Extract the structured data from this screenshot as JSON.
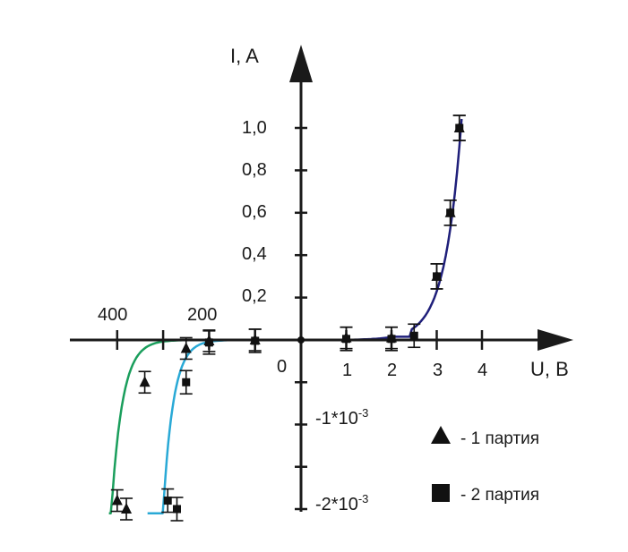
{
  "chart_data": {
    "type": "scatter",
    "description_axes": "current-voltage characteristic, forward and reverse branches with different scales",
    "x_axis": {
      "label": "U, B",
      "origin_label": "0",
      "positive_ticks": [
        "1",
        "2",
        "3",
        "4"
      ],
      "negative_tick_labels": [
        "400",
        "200"
      ]
    },
    "y_axis": {
      "label": "I, A",
      "positive_ticks": [
        "0,2",
        "0,4",
        "0,6",
        "0,8",
        "1,0"
      ],
      "negative_tick_labels": [
        {
          "base": "-1*10",
          "exp": "-3"
        },
        {
          "base": "-2*10",
          "exp": "-3"
        }
      ]
    },
    "legend": [
      {
        "marker": "triangle",
        "label": "- 1 партия"
      },
      {
        "marker": "square",
        "label": "- 2 партия"
      }
    ],
    "colors": {
      "axis": "#1a1a1a",
      "forward_curve": "#1f1f7a",
      "reverse_curve_1": "#1a9e5c",
      "reverse_curve_2": "#29a9d6",
      "markers": "#111111"
    },
    "series": [
      {
        "name": "1 партия",
        "marker": "triangle",
        "forward": [
          [
            1,
            0.01
          ],
          [
            2,
            0.01
          ],
          [
            3,
            0.3
          ],
          [
            3.3,
            0.6
          ],
          [
            3.5,
            1.0
          ]
        ],
        "reverse": [
          [
            -380,
            -0.002
          ],
          [
            -400,
            -0.0019
          ],
          [
            -340,
            -0.0005
          ],
          [
            -250,
            -0.0001
          ],
          [
            -200,
            -1e-05
          ],
          [
            -100,
            0
          ]
        ]
      },
      {
        "name": "2 партия",
        "marker": "square",
        "forward": [
          [
            1,
            0.005
          ],
          [
            2,
            0.005
          ],
          [
            2.5,
            0.02
          ],
          [
            3,
            0.3
          ],
          [
            3.3,
            0.6
          ],
          [
            3.5,
            1.0
          ]
        ],
        "reverse": [
          [
            -270,
            -0.002
          ],
          [
            -290,
            -0.0019
          ],
          [
            -250,
            -0.0005
          ],
          [
            -200,
            -3e-05
          ],
          [
            -100,
            -1e-05
          ]
        ]
      }
    ]
  }
}
